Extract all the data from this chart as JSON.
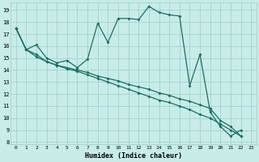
{
  "xlabel": "Humidex (Indice chaleur)",
  "bg_color": "#c8ece8",
  "grid_color": "#99cccc",
  "line_color": "#1a7060",
  "xlim": [
    -0.5,
    23.5
  ],
  "ylim": [
    7.8,
    19.6
  ],
  "yticks": [
    8,
    9,
    10,
    11,
    12,
    13,
    14,
    15,
    16,
    17,
    18,
    19
  ],
  "xticks": [
    0,
    1,
    2,
    3,
    4,
    5,
    6,
    7,
    8,
    9,
    10,
    11,
    12,
    13,
    14,
    15,
    16,
    17,
    18,
    19,
    20,
    21,
    22,
    23
  ],
  "line1_x": [
    0,
    1,
    2,
    3,
    4,
    5,
    6,
    7,
    8,
    9,
    10,
    11,
    12,
    13,
    14,
    15,
    16,
    17,
    18,
    19,
    20,
    21,
    22
  ],
  "line1_y": [
    17.5,
    15.7,
    16.1,
    15.0,
    14.6,
    14.8,
    14.2,
    14.9,
    17.9,
    16.3,
    18.3,
    18.3,
    18.2,
    19.3,
    18.8,
    18.6,
    18.5,
    12.7,
    15.3,
    10.5,
    9.3,
    8.5,
    9.0
  ],
  "line2_x": [
    0,
    1,
    2,
    3,
    4,
    5,
    6,
    7,
    8,
    9,
    10,
    11,
    12,
    13,
    14,
    15,
    16,
    17,
    18,
    19,
    20,
    21,
    22
  ],
  "line2_y": [
    17.5,
    15.7,
    15.3,
    14.7,
    14.4,
    14.2,
    14.0,
    13.8,
    13.5,
    13.3,
    13.1,
    12.8,
    12.6,
    12.4,
    12.1,
    11.9,
    11.6,
    11.4,
    11.1,
    10.8,
    9.8,
    9.3,
    8.5
  ],
  "line3_x": [
    0,
    1,
    2,
    3,
    4,
    5,
    6,
    7,
    8,
    9,
    10,
    11,
    12,
    13,
    14,
    15,
    16,
    17,
    18,
    19,
    20,
    21,
    22
  ],
  "line3_y": [
    17.5,
    15.7,
    15.1,
    14.7,
    14.4,
    14.1,
    13.9,
    13.6,
    13.3,
    13.0,
    12.7,
    12.4,
    12.1,
    11.8,
    11.5,
    11.3,
    11.0,
    10.7,
    10.3,
    10.0,
    9.5,
    9.0,
    8.5
  ]
}
